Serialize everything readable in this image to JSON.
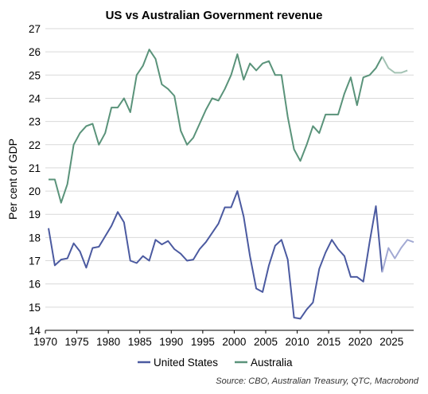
{
  "chart_data": {
    "type": "line",
    "title": "US vs Australian Government revenue",
    "ylabel": "Per cent of GDP",
    "xlabel": "",
    "xlim": [
      1970,
      2028.5
    ],
    "ylim": [
      14,
      27
    ],
    "yticks": [
      14,
      15,
      16,
      17,
      18,
      19,
      20,
      21,
      22,
      23,
      24,
      25,
      26,
      27
    ],
    "xticks": [
      1970,
      1975,
      1980,
      1985,
      1990,
      1995,
      2000,
      2005,
      2010,
      2015,
      2020,
      2025
    ],
    "grid": true,
    "legend": "bottom",
    "source": "Source: CBO, Australian Treasury, QTC, Macrobond",
    "series": [
      {
        "name": "United States",
        "color": "#4b5aa0",
        "forecast_color": "#a2a9d3",
        "forecast_from": 2023.5,
        "points": [
          [
            1970.5,
            18.4
          ],
          [
            1971.5,
            16.8
          ],
          [
            1972.5,
            17.05
          ],
          [
            1973.5,
            17.1
          ],
          [
            1974.5,
            17.75
          ],
          [
            1975.5,
            17.4
          ],
          [
            1976.5,
            16.7
          ],
          [
            1977.5,
            17.55
          ],
          [
            1978.5,
            17.6
          ],
          [
            1979.5,
            18.05
          ],
          [
            1980.5,
            18.5
          ],
          [
            1981.5,
            19.1
          ],
          [
            1982.5,
            18.65
          ],
          [
            1983.5,
            17.0
          ],
          [
            1984.5,
            16.9
          ],
          [
            1985.5,
            17.2
          ],
          [
            1986.5,
            17.0
          ],
          [
            1987.5,
            17.9
          ],
          [
            1988.5,
            17.7
          ],
          [
            1989.5,
            17.85
          ],
          [
            1990.5,
            17.5
          ],
          [
            1991.5,
            17.3
          ],
          [
            1992.5,
            17.0
          ],
          [
            1993.5,
            17.05
          ],
          [
            1994.5,
            17.5
          ],
          [
            1995.5,
            17.8
          ],
          [
            1996.5,
            18.2
          ],
          [
            1997.5,
            18.6
          ],
          [
            1998.5,
            19.3
          ],
          [
            1999.5,
            19.3
          ],
          [
            2000.5,
            20.0
          ],
          [
            2001.5,
            18.9
          ],
          [
            2002.5,
            17.2
          ],
          [
            2003.5,
            15.8
          ],
          [
            2004.5,
            15.65
          ],
          [
            2005.5,
            16.8
          ],
          [
            2006.5,
            17.65
          ],
          [
            2007.5,
            17.9
          ],
          [
            2008.5,
            17.05
          ],
          [
            2009.5,
            14.55
          ],
          [
            2010.5,
            14.5
          ],
          [
            2011.5,
            14.9
          ],
          [
            2012.5,
            15.2
          ],
          [
            2013.5,
            16.65
          ],
          [
            2014.5,
            17.35
          ],
          [
            2015.5,
            17.9
          ],
          [
            2016.5,
            17.5
          ],
          [
            2017.5,
            17.2
          ],
          [
            2018.5,
            16.3
          ],
          [
            2019.5,
            16.3
          ],
          [
            2020.5,
            16.1
          ],
          [
            2021.5,
            17.8
          ],
          [
            2022.5,
            19.35
          ],
          [
            2023.5,
            16.5
          ],
          [
            2024.5,
            17.55
          ],
          [
            2025.5,
            17.1
          ],
          [
            2026.5,
            17.55
          ],
          [
            2027.5,
            17.9
          ],
          [
            2028.5,
            17.8
          ]
        ]
      },
      {
        "name": "Australia",
        "color": "#5a937a",
        "forecast_color": "#a4c3b4",
        "forecast_from": 2023.5,
        "points": [
          [
            1970.5,
            20.5
          ],
          [
            1971.5,
            20.5
          ],
          [
            1972.5,
            19.5
          ],
          [
            1973.5,
            20.3
          ],
          [
            1974.5,
            22.0
          ],
          [
            1975.5,
            22.5
          ],
          [
            1976.5,
            22.8
          ],
          [
            1977.5,
            22.9
          ],
          [
            1978.5,
            22.0
          ],
          [
            1979.5,
            22.5
          ],
          [
            1980.5,
            23.6
          ],
          [
            1981.5,
            23.6
          ],
          [
            1982.5,
            24.0
          ],
          [
            1983.5,
            23.4
          ],
          [
            1984.5,
            25.0
          ],
          [
            1985.5,
            25.4
          ],
          [
            1986.5,
            26.1
          ],
          [
            1987.5,
            25.7
          ],
          [
            1988.5,
            24.6
          ],
          [
            1989.5,
            24.4
          ],
          [
            1990.5,
            24.1
          ],
          [
            1991.5,
            22.6
          ],
          [
            1992.5,
            22.0
          ],
          [
            1993.5,
            22.3
          ],
          [
            1994.5,
            22.9
          ],
          [
            1995.5,
            23.5
          ],
          [
            1996.5,
            24.0
          ],
          [
            1997.5,
            23.9
          ],
          [
            1998.5,
            24.4
          ],
          [
            1999.5,
            25.0
          ],
          [
            2000.5,
            25.9
          ],
          [
            2001.5,
            24.8
          ],
          [
            2002.5,
            25.5
          ],
          [
            2003.5,
            25.2
          ],
          [
            2004.5,
            25.5
          ],
          [
            2005.5,
            25.6
          ],
          [
            2006.5,
            25.0
          ],
          [
            2007.5,
            25.0
          ],
          [
            2008.5,
            23.2
          ],
          [
            2009.5,
            21.8
          ],
          [
            2010.5,
            21.3
          ],
          [
            2011.5,
            22.0
          ],
          [
            2012.5,
            22.8
          ],
          [
            2013.5,
            22.5
          ],
          [
            2014.5,
            23.3
          ],
          [
            2015.5,
            23.3
          ],
          [
            2016.5,
            23.3
          ],
          [
            2017.5,
            24.2
          ],
          [
            2018.5,
            24.9
          ],
          [
            2019.5,
            23.7
          ],
          [
            2020.5,
            24.9
          ],
          [
            2021.5,
            25.0
          ],
          [
            2022.5,
            25.3
          ],
          [
            2023.5,
            25.8
          ],
          [
            2024.5,
            25.3
          ],
          [
            2025.5,
            25.1
          ],
          [
            2026.5,
            25.1
          ],
          [
            2027.5,
            25.2
          ]
        ]
      }
    ]
  }
}
